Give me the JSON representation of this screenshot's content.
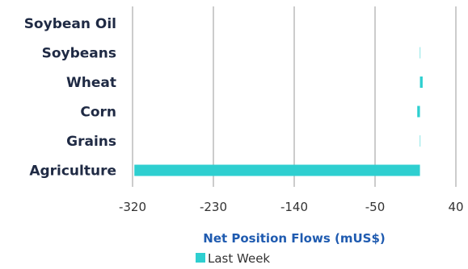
{
  "colors": {
    "series": "#2ecfd0",
    "grid": "#9a9a9a",
    "category_text": "#1f2a44",
    "axis_title": "#1f5bb0"
  },
  "chart_data": {
    "type": "bar",
    "orientation": "horizontal",
    "categories": [
      "Soybean Oil",
      "Soybeans",
      "Wheat",
      "Corn",
      "Grains",
      "Agriculture"
    ],
    "series": [
      {
        "name": "Last Week",
        "values": [
          0,
          0.5,
          3,
          -3,
          0.5,
          -318
        ]
      }
    ],
    "xlabel": "Net Position Flows (mUS$)",
    "ylabel": "",
    "xlim": [
      -320,
      40
    ],
    "xticks": [
      -320,
      -230,
      -140,
      -50,
      40
    ],
    "grid": true,
    "legend": "bottom"
  }
}
